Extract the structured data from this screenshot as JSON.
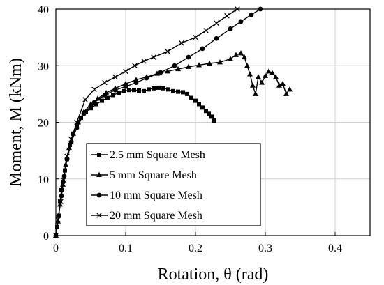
{
  "chart_data": {
    "type": "line",
    "title": "",
    "xlabel": "Rotation, θ (rad)",
    "ylabel": "Moment, M (kNm)",
    "xlim": [
      0,
      0.45
    ],
    "ylim": [
      0,
      40
    ],
    "xticks": [
      0,
      0.1,
      0.2,
      0.3,
      0.4
    ],
    "xtick_labels": [
      "0",
      "0.1",
      "0.2",
      "0.3",
      "0.4"
    ],
    "yticks": [
      0,
      10,
      20,
      30,
      40
    ],
    "ytick_labels": [
      "0",
      "10",
      "20",
      "30",
      "40"
    ],
    "grid": true,
    "legend_position": "bottom-left",
    "series": [
      {
        "name": "2.5 mm Square Mesh",
        "marker": "square",
        "x": [
          0.0,
          0.002,
          0.004,
          0.006,
          0.008,
          0.01,
          0.013,
          0.016,
          0.02,
          0.025,
          0.03,
          0.036,
          0.043,
          0.05,
          0.058,
          0.066,
          0.074,
          0.082,
          0.09,
          0.098,
          0.105,
          0.112,
          0.119,
          0.126,
          0.133,
          0.14,
          0.147,
          0.154,
          0.161,
          0.168,
          0.175,
          0.182,
          0.188,
          0.194,
          0.2,
          0.205,
          0.21,
          0.215,
          0.219,
          0.223,
          0.226
        ],
        "y": [
          0.0,
          1.5,
          3.5,
          6.0,
          8.0,
          9.5,
          11.5,
          13.5,
          16.0,
          18.0,
          19.5,
          20.8,
          21.8,
          22.5,
          23.2,
          23.8,
          24.3,
          24.8,
          25.2,
          25.5,
          25.7,
          25.7,
          25.6,
          25.5,
          25.8,
          26.0,
          26.1,
          26.0,
          25.8,
          25.5,
          25.4,
          25.3,
          25.0,
          24.3,
          23.8,
          23.2,
          22.6,
          22.0,
          21.5,
          21.0,
          20.3
        ]
      },
      {
        "name": "5 mm Square Mesh",
        "marker": "triangle",
        "x": [
          0.0,
          0.003,
          0.006,
          0.01,
          0.014,
          0.019,
          0.025,
          0.032,
          0.04,
          0.05,
          0.06,
          0.072,
          0.085,
          0.1,
          0.115,
          0.13,
          0.145,
          0.16,
          0.175,
          0.19,
          0.205,
          0.22,
          0.235,
          0.25,
          0.258,
          0.265,
          0.27,
          0.274,
          0.278,
          0.282,
          0.286,
          0.29,
          0.295,
          0.3,
          0.305,
          0.31,
          0.315,
          0.32,
          0.325,
          0.33,
          0.335
        ],
        "y": [
          0.0,
          2.5,
          5.5,
          9.0,
          12.5,
          15.5,
          18.0,
          20.0,
          21.8,
          23.2,
          24.2,
          25.2,
          26.0,
          26.8,
          27.5,
          28.0,
          28.6,
          29.0,
          29.4,
          29.8,
          30.1,
          30.4,
          30.6,
          31.2,
          31.9,
          32.2,
          31.5,
          30.0,
          28.5,
          26.5,
          25.0,
          28.0,
          27.0,
          28.2,
          29.0,
          28.7,
          28.0,
          26.5,
          26.8,
          25.0,
          25.8
        ]
      },
      {
        "name": "10 mm Square Mesh",
        "marker": "circle",
        "x": [
          0.0,
          0.004,
          0.008,
          0.012,
          0.016,
          0.022,
          0.03,
          0.04,
          0.055,
          0.07,
          0.085,
          0.1,
          0.115,
          0.13,
          0.15,
          0.17,
          0.19,
          0.21,
          0.23,
          0.25,
          0.265,
          0.28,
          0.293
        ],
        "y": [
          0.0,
          3.5,
          7.0,
          10.5,
          13.5,
          16.5,
          19.0,
          21.5,
          23.5,
          24.8,
          25.7,
          26.3,
          27.0,
          27.8,
          28.8,
          30.0,
          31.5,
          33.0,
          34.8,
          36.5,
          37.8,
          39.0,
          40.0
        ]
      },
      {
        "name": "20 mm Square Mesh",
        "marker": "x",
        "x": [
          0.0,
          0.003,
          0.007,
          0.011,
          0.016,
          0.022,
          0.03,
          0.042,
          0.055,
          0.07,
          0.085,
          0.1,
          0.113,
          0.126,
          0.14,
          0.16,
          0.18,
          0.2,
          0.215,
          0.23,
          0.245,
          0.26
        ],
        "y": [
          0.0,
          2.8,
          6.0,
          9.8,
          14.0,
          17.0,
          20.0,
          24.0,
          25.8,
          27.0,
          28.0,
          29.0,
          30.0,
          30.8,
          31.5,
          32.5,
          34.0,
          35.0,
          36.2,
          37.5,
          38.8,
          40.0
        ]
      }
    ]
  }
}
